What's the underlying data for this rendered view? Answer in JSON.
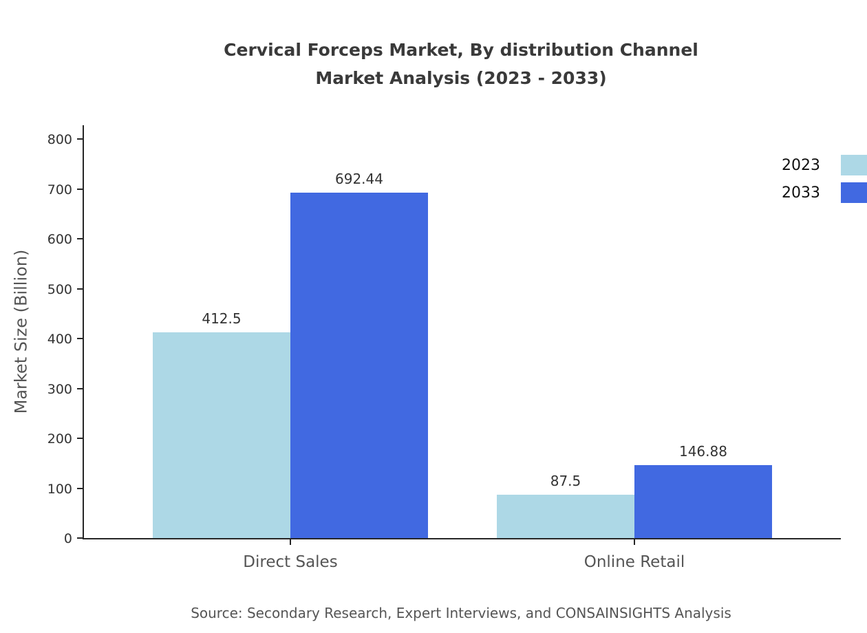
{
  "title": {
    "line1": "Cervical Forceps Market, By distribution Channel",
    "line2": "Market Analysis (2023 - 2033)"
  },
  "source": "Source: Secondary Research, Expert Interviews, and CONSAINSIGHTS Analysis",
  "chart_data": {
    "type": "bar",
    "categories": [
      "Direct Sales",
      "Online Retail"
    ],
    "series": [
      {
        "name": "2023",
        "color": "#add8e6",
        "values": [
          412.5,
          87.5
        ]
      },
      {
        "name": "2033",
        "color": "#4169e1",
        "values": [
          692.44,
          146.88
        ]
      }
    ],
    "value_labels": [
      [
        "412.5",
        "87.5"
      ],
      [
        "692.44",
        "146.88"
      ]
    ],
    "title": "Cervical Forceps Market, By distribution Channel Market Analysis (2023 - 2033)",
    "xlabel": "",
    "ylabel": "Market Size (Billion)",
    "ylim": [
      0,
      800
    ],
    "yticks": [
      0,
      100,
      200,
      300,
      400,
      500,
      600,
      700,
      800
    ],
    "grid": false,
    "legend_position": "top-right"
  }
}
